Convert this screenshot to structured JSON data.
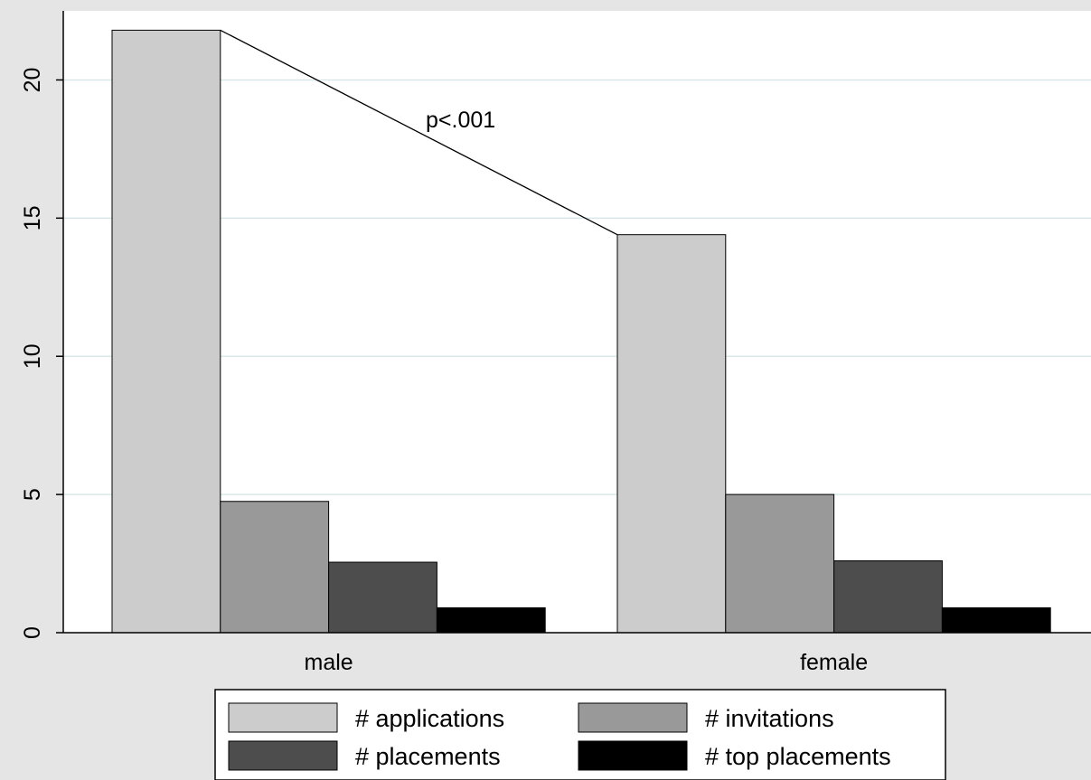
{
  "chart_data": {
    "type": "bar",
    "categories": [
      "male",
      "female"
    ],
    "series": [
      {
        "name": "# applications",
        "values": [
          21.8,
          14.4
        ],
        "color": "#cccccc"
      },
      {
        "name": "# invitations",
        "values": [
          4.75,
          5.0
        ],
        "color": "#999999"
      },
      {
        "name": "# placements",
        "values": [
          2.55,
          2.6
        ],
        "color": "#4d4d4d"
      },
      {
        "name": "# top placements",
        "values": [
          0.9,
          0.9
        ],
        "color": "#000000"
      }
    ],
    "ylim": [
      0,
      22.5
    ],
    "yticks": [
      0,
      5,
      10,
      15,
      20
    ],
    "grid": true,
    "legend": "bottom",
    "annotation": {
      "text": "p<.001",
      "from": "male:# applications",
      "to": "female:# applications"
    },
    "colors": {
      "plot_background": "#ffffff",
      "outer_background": "#e5e5e5",
      "grid": "#d8e8e8"
    }
  }
}
